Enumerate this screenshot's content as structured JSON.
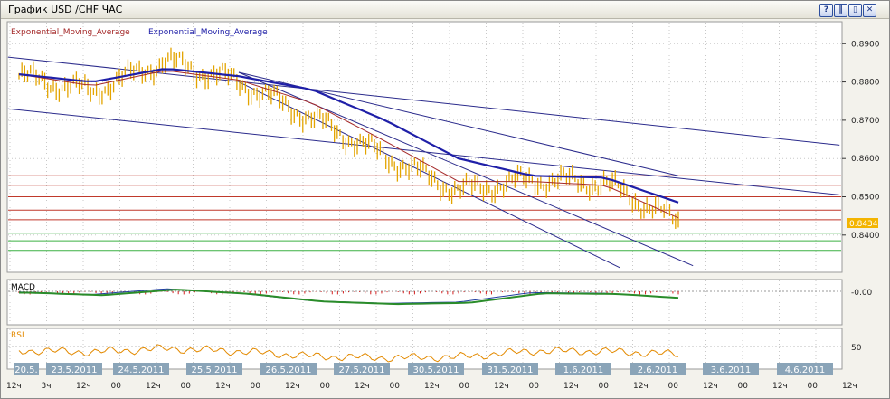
{
  "window": {
    "title": "График USD /CHF  ЧАС",
    "buttons": [
      "?",
      "‖",
      "▯",
      "✕"
    ]
  },
  "legend": {
    "ema_a": "Exponential_Moving_Average",
    "ema_b": "Exponential_Moving_Average"
  },
  "colors": {
    "price": "#e3a400",
    "ema_fast": "#a52a2a",
    "ema_slow": "#1f1fa8",
    "trend": "#2b2b8c",
    "resistance": "#c0392b",
    "support": "#3cb043",
    "macd": "#1f3da0",
    "macd_signal": "#2a8c2a",
    "macd_hist": "#d22020",
    "rsi": "#e38a00",
    "date_label_bg": "#8aa4b8"
  },
  "chart_data": [
    {
      "type": "line",
      "title": "",
      "y_ticks": [
        "0.8900",
        "0.8800",
        "0.8700",
        "0.8600",
        "0.8500",
        "0.8400"
      ],
      "ylim": [
        0.8305,
        0.8955
      ],
      "current_value_label": "0.8434",
      "grid": true,
      "x": [
        "20.5",
        "23.5",
        "24.5",
        "25.5",
        "26.5",
        "27.5",
        "30.5",
        "31.5",
        "1.6",
        "2.6"
      ],
      "series": [
        {
          "role": "price",
          "values": [
            0.8815,
            0.8775,
            0.8855,
            0.88,
            0.8705,
            0.8605,
            0.8515,
            0.8545,
            0.8535,
            0.8434
          ]
        },
        {
          "role": "ema_fast",
          "name": "Exponential_Moving_Average",
          "values": [
            0.882,
            0.879,
            0.883,
            0.8805,
            0.8745,
            0.8645,
            0.854,
            0.854,
            0.853,
            0.8445
          ]
        },
        {
          "role": "ema_slow",
          "name": "Exponential_Moving_Average",
          "values": [
            0.882,
            0.88,
            0.8835,
            0.8815,
            0.878,
            0.87,
            0.86,
            0.8555,
            0.855,
            0.8485
          ]
        }
      ],
      "horizontal_levels_red": [
        0.8555,
        0.853,
        0.85,
        0.8465,
        0.844
      ],
      "horizontal_levels_green": [
        0.8405,
        0.8385,
        0.836
      ]
    },
    {
      "type": "line",
      "title": "MACD",
      "y_ticks": [
        "-0.00"
      ],
      "grid": true
    },
    {
      "type": "line",
      "title": "RSI",
      "y_ticks": [
        "50"
      ],
      "grid": true
    }
  ],
  "date_labels": [
    "20.5.",
    "23.5.2011",
    "24.5.2011",
    "25.5.2011",
    "26.5.2011",
    "27.5.2011",
    "30.5.2011",
    "31.5.2011",
    "1.6.2011",
    "2.6.2011",
    "3.6.2011",
    "4.6.2011"
  ],
  "hour_labels": [
    "12ч",
    "3ч",
    "12ч",
    "00",
    "12ч",
    "00",
    "12ч",
    "00",
    "12ч",
    "00",
    "12ч",
    "00",
    "12ч",
    "00",
    "12ч",
    "00",
    "12ч",
    "00",
    "12ч",
    "00",
    "12ч",
    "00",
    "12ч",
    "00",
    "12ч"
  ]
}
